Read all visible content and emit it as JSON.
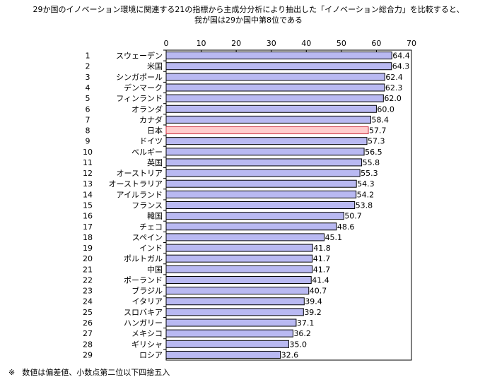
{
  "title_lines": [
    "29か国のイノベーション環境に関連する21の指標から主成分分析により抽出した「イノベーション総合力」を比較すると、",
    "我が国は29か国中第8位である"
  ],
  "footnote": {
    "mark": "※",
    "text": "数値は偏差値、小数点第二位以下四捨五入"
  },
  "colors": {
    "bar_fill": "#b9b9f2",
    "bar_highlight_fill": "#ffcdcd",
    "bar_stroke": "#000000",
    "highlight_label": "#cc3344"
  },
  "chart_data": {
    "type": "bar",
    "orientation": "horizontal",
    "xlim": [
      0,
      70
    ],
    "ticks": [
      "0",
      "10",
      "20",
      "30",
      "40",
      "50",
      "60",
      "70"
    ],
    "grid": false,
    "highlight": "日本",
    "ranks": [
      "1",
      "2",
      "3",
      "4",
      "5",
      "6",
      "7",
      "8",
      "9",
      "10",
      "11",
      "12",
      "13",
      "14",
      "15",
      "16",
      "17",
      "18",
      "19",
      "20",
      "21",
      "22",
      "23",
      "24",
      "25",
      "26",
      "27",
      "28",
      "29"
    ],
    "categories": [
      "スウェーデン",
      "米国",
      "シンガポール",
      "デンマーク",
      "フィンランド",
      "オランダ",
      "カナダ",
      "日本",
      "ドイツ",
      "ベルギー",
      "英国",
      "オーストリア",
      "オーストラリア",
      "アイルランド",
      "フランス",
      "韓国",
      "チェコ",
      "スペイン",
      "インド",
      "ポルトガル",
      "中国",
      "ポーランド",
      "ブラジル",
      "イタリア",
      "スロバキア",
      "ハンガリー",
      "メキシコ",
      "ギリシャ",
      "ロシア"
    ],
    "values": [
      64.4,
      64.3,
      62.4,
      62.3,
      62.0,
      60.0,
      58.4,
      57.7,
      57.3,
      56.5,
      55.8,
      55.3,
      54.3,
      54.2,
      53.8,
      50.7,
      48.6,
      45.1,
      41.8,
      41.7,
      41.7,
      41.4,
      40.7,
      39.4,
      39.2,
      37.1,
      36.2,
      35.0,
      32.6
    ],
    "value_labels": [
      "64.4",
      "64.3",
      "62.4",
      "62.3",
      "62.0",
      "60.0",
      "58.4",
      "57.7",
      "57.3",
      "56.5",
      "55.8",
      "55.3",
      "54.3",
      "54.2",
      "53.8",
      "50.7",
      "48.6",
      "45.1",
      "41.8",
      "41.7",
      "41.7",
      "41.4",
      "40.7",
      "39.4",
      "39.2",
      "37.1",
      "36.2",
      "35.0",
      "32.6"
    ]
  }
}
